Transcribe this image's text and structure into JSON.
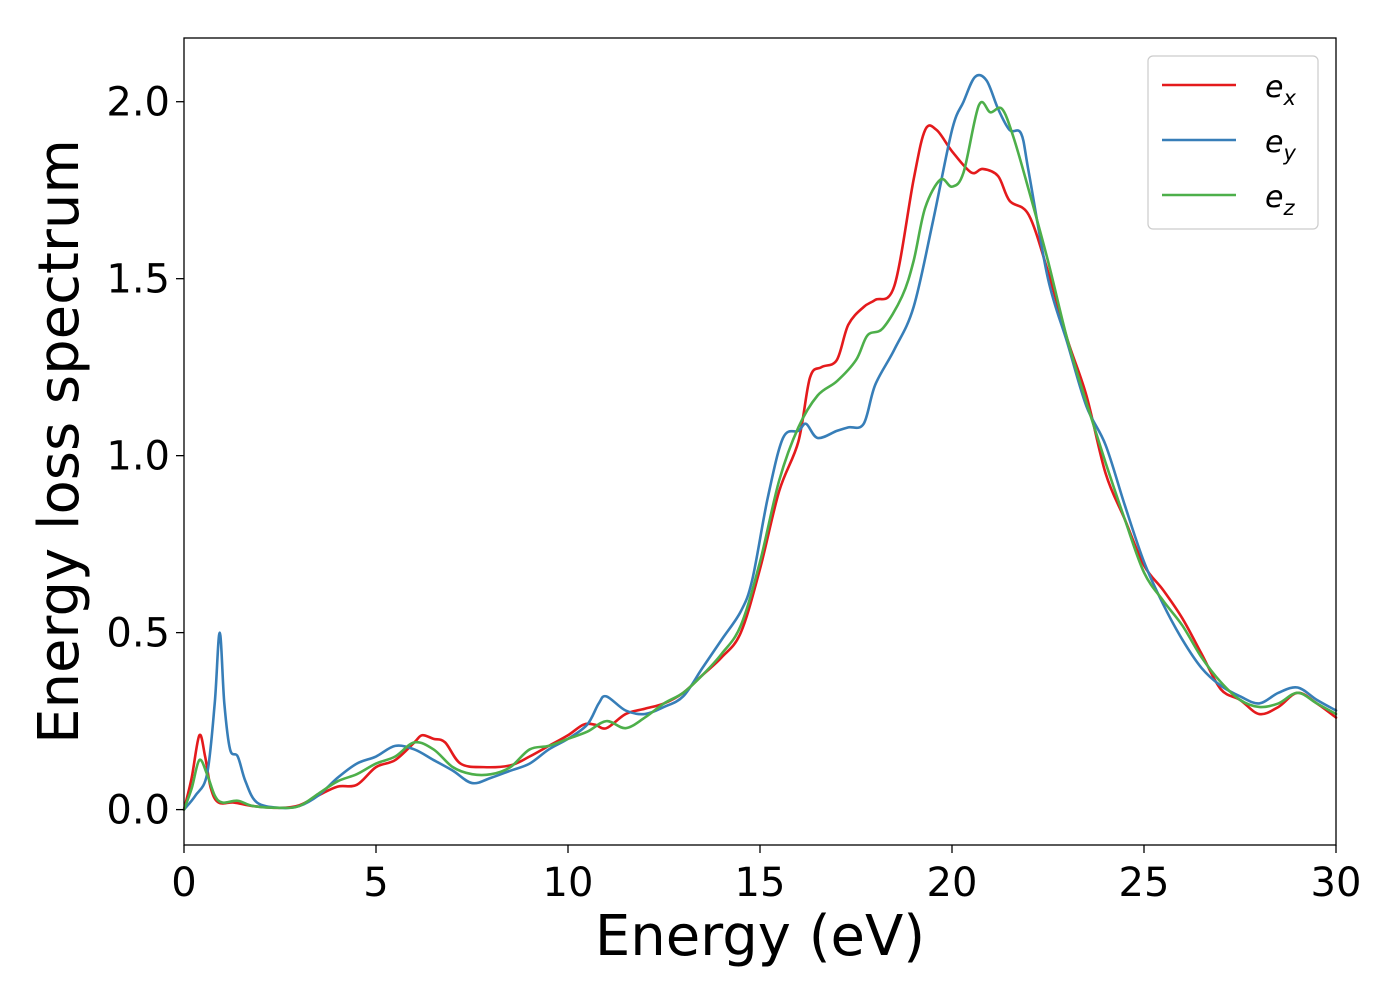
{
  "chart_data": {
    "type": "line",
    "title": "",
    "xlabel": "Energy (eV)",
    "ylabel": "Energy loss spectrum",
    "xlim": [
      0,
      30
    ],
    "ylim": [
      -0.1,
      2.18
    ],
    "xticks": [
      0,
      5,
      10,
      15,
      20,
      25,
      30
    ],
    "yticks": [
      0.0,
      0.5,
      1.0,
      1.5,
      2.0
    ],
    "grid": false,
    "legend_position": "top-right",
    "series": [
      {
        "name": "e_x",
        "legend_base": "e",
        "legend_sub": "x",
        "color": "#e41a1c",
        "points": [
          [
            0,
            0.0
          ],
          [
            0.2,
            0.09
          ],
          [
            0.4,
            0.21
          ],
          [
            0.55,
            0.15
          ],
          [
            0.7,
            0.06
          ],
          [
            0.9,
            0.02
          ],
          [
            1.3,
            0.02
          ],
          [
            1.8,
            0.01
          ],
          [
            2.5,
            0.005
          ],
          [
            3.0,
            0.012
          ],
          [
            3.5,
            0.04
          ],
          [
            4.0,
            0.065
          ],
          [
            4.5,
            0.07
          ],
          [
            5.0,
            0.12
          ],
          [
            5.5,
            0.14
          ],
          [
            6.0,
            0.19
          ],
          [
            6.2,
            0.21
          ],
          [
            6.5,
            0.2
          ],
          [
            6.8,
            0.19
          ],
          [
            7.2,
            0.13
          ],
          [
            7.8,
            0.12
          ],
          [
            8.5,
            0.125
          ],
          [
            9.0,
            0.15
          ],
          [
            9.5,
            0.18
          ],
          [
            10.0,
            0.21
          ],
          [
            10.4,
            0.24
          ],
          [
            10.7,
            0.24
          ],
          [
            11.0,
            0.23
          ],
          [
            11.5,
            0.27
          ],
          [
            12.0,
            0.285
          ],
          [
            12.5,
            0.3
          ],
          [
            13.0,
            0.33
          ],
          [
            13.5,
            0.38
          ],
          [
            14.0,
            0.43
          ],
          [
            14.5,
            0.5
          ],
          [
            15.0,
            0.68
          ],
          [
            15.5,
            0.9
          ],
          [
            16.0,
            1.04
          ],
          [
            16.3,
            1.22
          ],
          [
            16.6,
            1.25
          ],
          [
            17.0,
            1.27
          ],
          [
            17.3,
            1.37
          ],
          [
            17.7,
            1.42
          ],
          [
            18.0,
            1.44
          ],
          [
            18.5,
            1.48
          ],
          [
            19.0,
            1.78
          ],
          [
            19.3,
            1.92
          ],
          [
            19.6,
            1.92
          ],
          [
            20.0,
            1.86
          ],
          [
            20.5,
            1.8
          ],
          [
            20.8,
            1.81
          ],
          [
            21.2,
            1.79
          ],
          [
            21.5,
            1.72
          ],
          [
            22.0,
            1.68
          ],
          [
            22.5,
            1.52
          ],
          [
            23.0,
            1.33
          ],
          [
            23.5,
            1.17
          ],
          [
            24.0,
            0.95
          ],
          [
            24.5,
            0.82
          ],
          [
            25.0,
            0.69
          ],
          [
            25.5,
            0.62
          ],
          [
            26.0,
            0.54
          ],
          [
            26.5,
            0.44
          ],
          [
            27.0,
            0.34
          ],
          [
            27.5,
            0.31
          ],
          [
            28.0,
            0.27
          ],
          [
            28.5,
            0.29
          ],
          [
            29.0,
            0.33
          ],
          [
            29.5,
            0.3
          ],
          [
            30.0,
            0.26
          ]
        ]
      },
      {
        "name": "e_y",
        "legend_base": "e",
        "legend_sub": "y",
        "color": "#377eb8",
        "points": [
          [
            0,
            0.0
          ],
          [
            0.3,
            0.04
          ],
          [
            0.6,
            0.1
          ],
          [
            0.8,
            0.3
          ],
          [
            0.93,
            0.5
          ],
          [
            1.05,
            0.3
          ],
          [
            1.2,
            0.17
          ],
          [
            1.4,
            0.15
          ],
          [
            1.6,
            0.08
          ],
          [
            1.9,
            0.02
          ],
          [
            2.5,
            0.005
          ],
          [
            3.0,
            0.01
          ],
          [
            3.5,
            0.04
          ],
          [
            4.0,
            0.09
          ],
          [
            4.5,
            0.13
          ],
          [
            5.0,
            0.15
          ],
          [
            5.5,
            0.18
          ],
          [
            6.0,
            0.17
          ],
          [
            6.5,
            0.14
          ],
          [
            7.0,
            0.11
          ],
          [
            7.5,
            0.075
          ],
          [
            8.0,
            0.09
          ],
          [
            8.5,
            0.11
          ],
          [
            9.0,
            0.13
          ],
          [
            9.5,
            0.17
          ],
          [
            10.0,
            0.2
          ],
          [
            10.5,
            0.24
          ],
          [
            10.8,
            0.3
          ],
          [
            11.0,
            0.32
          ],
          [
            11.5,
            0.28
          ],
          [
            12.0,
            0.27
          ],
          [
            12.5,
            0.29
          ],
          [
            13.0,
            0.32
          ],
          [
            13.5,
            0.4
          ],
          [
            14.0,
            0.48
          ],
          [
            14.5,
            0.56
          ],
          [
            14.8,
            0.65
          ],
          [
            15.2,
            0.88
          ],
          [
            15.6,
            1.05
          ],
          [
            16.0,
            1.07
          ],
          [
            16.2,
            1.09
          ],
          [
            16.5,
            1.05
          ],
          [
            17.0,
            1.07
          ],
          [
            17.3,
            1.08
          ],
          [
            17.7,
            1.09
          ],
          [
            18.0,
            1.2
          ],
          [
            18.5,
            1.3
          ],
          [
            19.0,
            1.42
          ],
          [
            19.5,
            1.66
          ],
          [
            20.0,
            1.92
          ],
          [
            20.3,
            2.0
          ],
          [
            20.6,
            2.07
          ],
          [
            20.9,
            2.06
          ],
          [
            21.2,
            1.98
          ],
          [
            21.5,
            1.92
          ],
          [
            21.8,
            1.91
          ],
          [
            22.0,
            1.8
          ],
          [
            22.5,
            1.5
          ],
          [
            23.0,
            1.32
          ],
          [
            23.5,
            1.14
          ],
          [
            24.0,
            1.03
          ],
          [
            24.5,
            0.86
          ],
          [
            25.0,
            0.7
          ],
          [
            25.5,
            0.58
          ],
          [
            26.0,
            0.48
          ],
          [
            26.5,
            0.4
          ],
          [
            27.0,
            0.35
          ],
          [
            27.5,
            0.32
          ],
          [
            28.0,
            0.3
          ],
          [
            28.5,
            0.33
          ],
          [
            29.0,
            0.345
          ],
          [
            29.5,
            0.31
          ],
          [
            30.0,
            0.28
          ]
        ]
      },
      {
        "name": "e_z",
        "legend_base": "e",
        "legend_sub": "z",
        "color": "#4daf4a",
        "points": [
          [
            0,
            0.0
          ],
          [
            0.2,
            0.06
          ],
          [
            0.4,
            0.14
          ],
          [
            0.6,
            0.1
          ],
          [
            0.8,
            0.04
          ],
          [
            1.0,
            0.02
          ],
          [
            1.4,
            0.025
          ],
          [
            1.8,
            0.01
          ],
          [
            2.5,
            0.005
          ],
          [
            3.0,
            0.01
          ],
          [
            3.5,
            0.045
          ],
          [
            4.0,
            0.08
          ],
          [
            4.5,
            0.1
          ],
          [
            5.0,
            0.13
          ],
          [
            5.5,
            0.15
          ],
          [
            6.0,
            0.19
          ],
          [
            6.5,
            0.17
          ],
          [
            7.0,
            0.12
          ],
          [
            7.5,
            0.1
          ],
          [
            8.0,
            0.1
          ],
          [
            8.5,
            0.12
          ],
          [
            9.0,
            0.17
          ],
          [
            9.5,
            0.18
          ],
          [
            10.0,
            0.2
          ],
          [
            10.5,
            0.22
          ],
          [
            11.0,
            0.25
          ],
          [
            11.5,
            0.23
          ],
          [
            12.0,
            0.26
          ],
          [
            12.5,
            0.3
          ],
          [
            13.0,
            0.33
          ],
          [
            13.5,
            0.38
          ],
          [
            14.0,
            0.44
          ],
          [
            14.5,
            0.52
          ],
          [
            15.0,
            0.7
          ],
          [
            15.5,
            0.93
          ],
          [
            16.0,
            1.08
          ],
          [
            16.5,
            1.17
          ],
          [
            17.0,
            1.21
          ],
          [
            17.5,
            1.27
          ],
          [
            17.8,
            1.34
          ],
          [
            18.2,
            1.36
          ],
          [
            18.7,
            1.45
          ],
          [
            19.0,
            1.55
          ],
          [
            19.3,
            1.7
          ],
          [
            19.7,
            1.78
          ],
          [
            20.0,
            1.76
          ],
          [
            20.3,
            1.8
          ],
          [
            20.7,
            1.99
          ],
          [
            21.0,
            1.97
          ],
          [
            21.3,
            1.98
          ],
          [
            21.6,
            1.9
          ],
          [
            22.0,
            1.75
          ],
          [
            22.5,
            1.55
          ],
          [
            23.0,
            1.33
          ],
          [
            23.5,
            1.15
          ],
          [
            24.0,
            0.98
          ],
          [
            24.5,
            0.82
          ],
          [
            25.0,
            0.67
          ],
          [
            25.5,
            0.59
          ],
          [
            26.0,
            0.52
          ],
          [
            26.5,
            0.43
          ],
          [
            27.0,
            0.36
          ],
          [
            27.5,
            0.31
          ],
          [
            28.0,
            0.29
          ],
          [
            28.5,
            0.3
          ],
          [
            29.0,
            0.33
          ],
          [
            29.5,
            0.3
          ],
          [
            30.0,
            0.27
          ]
        ]
      }
    ]
  }
}
